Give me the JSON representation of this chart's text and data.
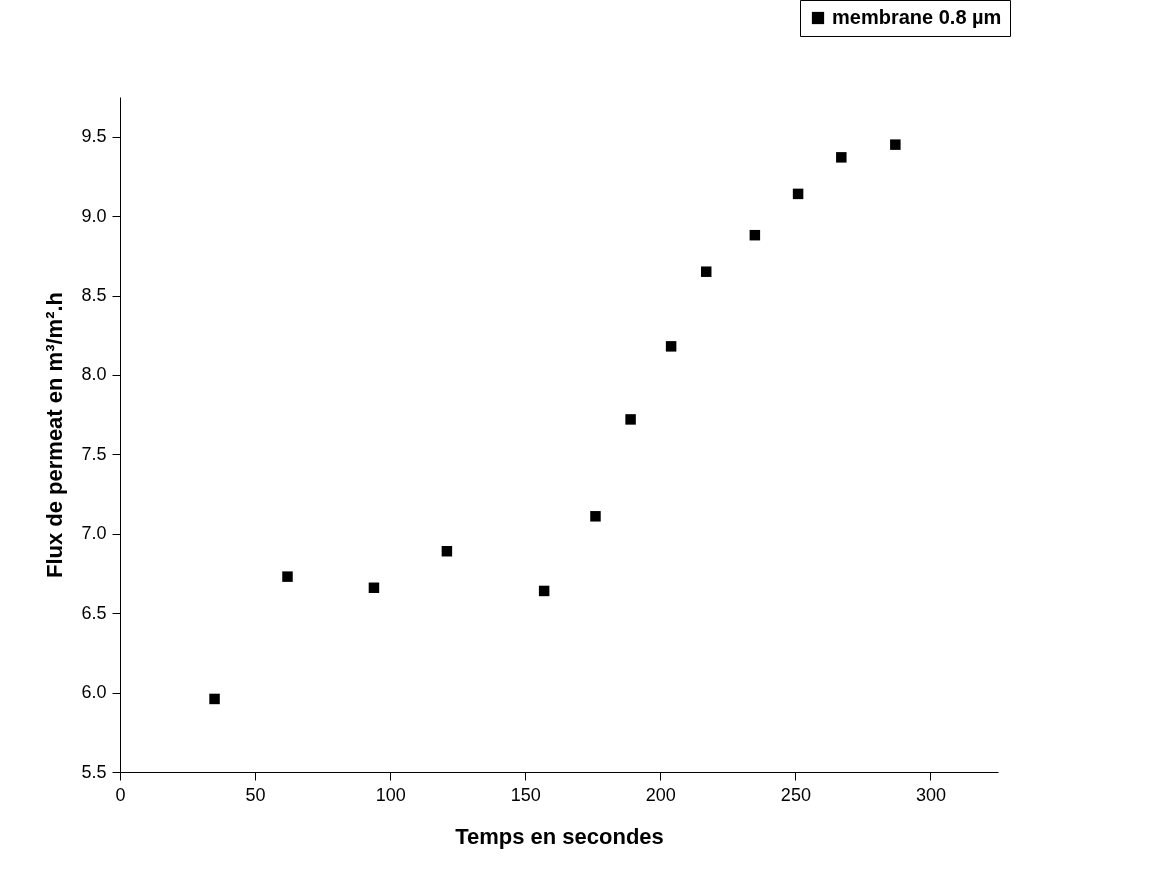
{
  "chart_data": {
    "type": "scatter",
    "xlabel": "Temps en secondes",
    "ylabel": "Flux de permeat en m³/m².h",
    "x": [
      35,
      62,
      94,
      121,
      157,
      176,
      189,
      204,
      217,
      235,
      251,
      267,
      287
    ],
    "series": [
      {
        "name": "membrane 0.8 µm",
        "color": "#000000",
        "values": [
          5.96,
          6.73,
          6.66,
          6.89,
          6.64,
          7.11,
          7.72,
          8.18,
          8.65,
          8.88,
          9.14,
          9.37,
          9.45
        ]
      }
    ],
    "xlim": [
      0,
      325
    ],
    "xticks": [
      0,
      50,
      100,
      150,
      200,
      250,
      300
    ],
    "ylim": [
      5.5,
      9.75
    ],
    "yticks": [
      5.5,
      {
        "value": 6,
        "label": "6.0"
      },
      6.5,
      {
        "value": 7,
        "label": "7.0"
      },
      7.5,
      {
        "value": 8,
        "label": "8.0"
      },
      8.5,
      {
        "value": 9,
        "label": "9.0"
      },
      9.5
    ],
    "marker": "square",
    "legend": "top right",
    "grid": false
  }
}
